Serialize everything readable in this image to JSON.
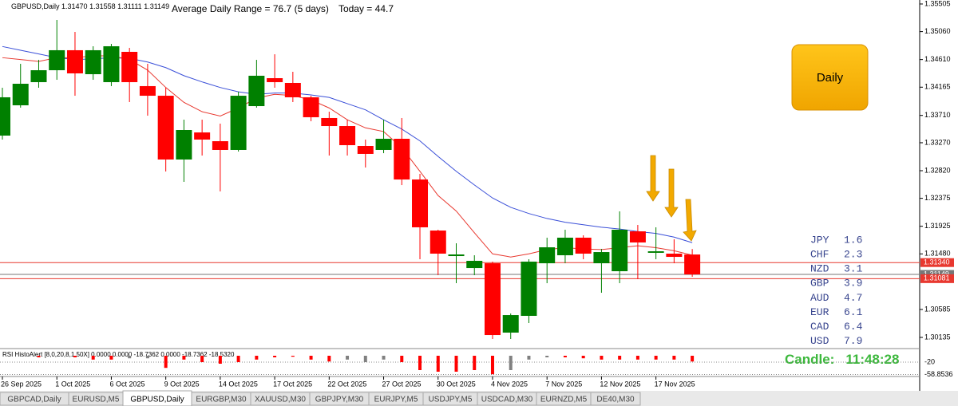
{
  "header": {
    "symbol": "GBPUSD,Daily",
    "ohlc": [
      "1.31470",
      "1.31558",
      "1.31111",
      "1.31149"
    ]
  },
  "adr": {
    "label": "Average Daily Range =",
    "value": 76.7,
    "period": "(5 days)",
    "today_label": "Today =",
    "today": 44.7
  },
  "button": "Daily",
  "candle_timer": {
    "label": "Candle:",
    "time": "11:48:28"
  },
  "strength": [
    {
      "currency": "JPY",
      "value": 1.6
    },
    {
      "currency": "CHF",
      "value": 2.3
    },
    {
      "currency": "NZD",
      "value": 3.1
    },
    {
      "currency": "GBP",
      "value": 3.9
    },
    {
      "currency": "AUD",
      "value": 4.7
    },
    {
      "currency": "EUR",
      "value": 6.1
    },
    {
      "currency": "CAD",
      "value": 6.4
    },
    {
      "currency": "USD",
      "value": 7.9
    }
  ],
  "tabs": [
    "GBPCAD,Daily",
    "EURUSD,M5",
    "GBPUSD,Daily",
    "EURGBP,M30",
    "XAUUSD,M30",
    "GBPJPY,M30",
    "EURJPY,M5",
    "USDJPY,M5",
    "USDCAD,M30",
    "EURNZD,M5",
    "DE40,M30"
  ],
  "active_tab": 2,
  "chart_data": {
    "type": "candlestick",
    "categories": [
      "26 Sep 2025",
      null,
      null,
      "1 Oct 2025",
      null,
      null,
      "6 Oct 2025",
      null,
      null,
      "9 Oct 2025",
      null,
      null,
      "14 Oct 2025",
      null,
      null,
      "17 Oct 2025",
      null,
      null,
      "22 Oct 2025",
      null,
      null,
      "27 Oct 2025",
      null,
      null,
      "30 Oct 2025",
      null,
      null,
      "4 Nov 2025",
      null,
      null,
      "7 Nov 2025",
      null,
      null,
      "12 Nov 2025",
      null,
      null,
      "17 Nov 2025",
      null,
      null
    ],
    "open": [
      1.33385,
      1.33873,
      1.34246,
      1.34438,
      1.3476,
      1.34374,
      1.34246,
      1.34734,
      1.34182,
      1.34027,
      1.33,
      1.33436,
      1.33295,
      1.33154,
      1.3386,
      1.3431,
      1.34233,
      1.34002,
      1.33668,
      1.33539,
      1.33218,
      1.33154,
      1.33334,
      1.32678,
      1.31856,
      1.31445,
      1.31252,
      1.31329,
      1.30212,
      1.30482,
      1.31329,
      1.31458,
      1.31741,
      1.31329,
      1.31201,
      1.31843,
      1.31497,
      1.31484,
      1.3147
    ],
    "high": [
      1.34156,
      1.34541,
      1.34605,
      1.35248,
      1.35055,
      1.34824,
      1.34862,
      1.34798,
      1.34541,
      1.34156,
      1.33642,
      1.33642,
      1.33578,
      1.34092,
      1.34605,
      1.34695,
      1.34413,
      1.34027,
      1.3377,
      1.33642,
      1.33321,
      1.33642,
      1.33668,
      1.32769,
      1.31869,
      1.31651,
      1.31458,
      1.31355,
      1.3052,
      1.31394,
      1.31741,
      1.31869,
      1.31779,
      1.31561,
      1.32165,
      1.31946,
      1.31908,
      1.31715,
      1.31558
    ],
    "low": [
      1.33321,
      1.33835,
      1.34156,
      1.34284,
      1.34027,
      1.34284,
      1.34182,
      1.33925,
      1.33706,
      1.32807,
      1.3264,
      1.33064,
      1.32486,
      1.33128,
      1.33835,
      1.34156,
      1.33925,
      1.33616,
      1.33064,
      1.33064,
      1.32871,
      1.33102,
      1.32588,
      1.31394,
      1.31137,
      1.31008,
      1.31137,
      1.30109,
      1.30109,
      1.30366,
      1.31008,
      1.31329,
      1.31394,
      1.30854,
      1.31008,
      1.31073,
      1.31394,
      1.31329,
      1.31111
    ],
    "close": [
      1.34002,
      1.3422,
      1.34438,
      1.3476,
      1.34387,
      1.3476,
      1.34824,
      1.34246,
      1.34027,
      1.33,
      1.33475,
      1.33321,
      1.33154,
      1.34027,
      1.34349,
      1.34246,
      1.34002,
      1.33681,
      1.33539,
      1.33231,
      1.3309,
      1.33334,
      1.32678,
      1.31908,
      1.31484,
      1.31471,
      1.31368,
      1.30173,
      1.30494,
      1.31355,
      1.31586,
      1.31741,
      1.31484,
      1.31509,
      1.31869,
      1.31664,
      1.31522,
      1.31432,
      1.31149
    ],
    "up_color": "#008000",
    "down_color": "#ff0000",
    "lines": [
      {
        "color": "#3a4fd8",
        "values": [
          1.3482,
          1.3476,
          1.347,
          1.3464,
          1.3461,
          1.3462,
          1.3464,
          1.3463,
          1.3457,
          1.3448,
          1.3435,
          1.3425,
          1.3416,
          1.3409,
          1.3405,
          1.3407,
          1.3407,
          1.3404,
          1.34,
          1.339,
          1.338,
          1.3364,
          1.3349,
          1.333,
          1.3305,
          1.3281,
          1.3259,
          1.3238,
          1.3223,
          1.3213,
          1.3205,
          1.3199,
          1.3195,
          1.3191,
          1.3188,
          1.3184,
          1.3181,
          1.3175,
          1.3166
        ]
      },
      {
        "color": "#e8382f",
        "values": [
          1.3464,
          1.3461,
          1.3458,
          1.3464,
          1.3464,
          1.3467,
          1.3467,
          1.3461,
          1.3444,
          1.3416,
          1.3392,
          1.3377,
          1.337,
          1.3383,
          1.3399,
          1.3405,
          1.3403,
          1.3396,
          1.3383,
          1.3364,
          1.3351,
          1.3345,
          1.3319,
          1.3281,
          1.3242,
          1.3217,
          1.3182,
          1.3148,
          1.3143,
          1.3148,
          1.3155,
          1.3158,
          1.3156,
          1.3155,
          1.3158,
          1.3161,
          1.3158,
          1.3153,
          1.3146
        ]
      }
    ],
    "levels": [
      {
        "value": 1.3134,
        "label": "1.31340",
        "color": "#e8382f"
      },
      {
        "value": 1.31149,
        "label": "1.31149",
        "color": "#777777"
      },
      {
        "value": 1.31081,
        "label": "1.31081",
        "color": "#e8382f"
      }
    ],
    "ylim": [
      1.29955,
      1.35569
    ],
    "yticks": [
      1.35505,
      {
        "value": 1.3506,
        "label": "1.35060"
      },
      {
        "value": 1.3461,
        "label": "1.34610"
      },
      1.34165,
      {
        "value": 1.3371,
        "label": "1.33710"
      },
      {
        "value": 1.3327,
        "label": "1.33270"
      },
      {
        "value": 1.3282,
        "label": "1.32820"
      },
      1.32375,
      1.31925,
      {
        "value": 1.3148,
        "label": "1.31480"
      },
      1.30585,
      1.30135
    ],
    "indicator": {
      "title": "RSI HistoAlert [8,0,20,8,1.50X] 0.0000 0.0000 -18.7362 0.0000 -18.7362 -18.5320",
      "ylim": [
        -60,
        5
      ],
      "yticks": [
        -20,
        -58.8536
      ],
      "values": [
        null,
        null,
        -5,
        null,
        -5,
        -12,
        -12,
        -8,
        -8,
        -38,
        -12,
        -20,
        -25,
        -20,
        -12,
        -5,
        -3,
        -12,
        -18,
        -12,
        -20,
        -12,
        -20,
        -45,
        -50,
        -50,
        -45,
        -58,
        -45,
        -12,
        -5,
        -5,
        -8,
        -12,
        -12,
        -12,
        -12,
        -12,
        -18
      ],
      "colors": [
        "#ff0000",
        "#ff0000",
        "#ff0000",
        "#ff0000",
        "#ff0000",
        "#ff0000",
        "#ff0000",
        "#808080",
        "#808080",
        "#ff0000",
        "#ff0000",
        "#ff0000",
        "#ff0000",
        "#ff0000",
        "#ff0000",
        "#ff0000",
        "#ff0000",
        "#ff0000",
        "#ff0000",
        "#808080",
        "#808080",
        "#808080",
        "#ff0000",
        "#ff0000",
        "#ff0000",
        "#ff0000",
        "#ff0000",
        "#ff0000",
        "#808080",
        "#808080",
        "#808080",
        "#ff0000",
        "#ff0000",
        "#ff0000",
        "#ff0000",
        "#ff0000",
        "#ff0000",
        "#ff0000",
        "#ff0000"
      ]
    }
  }
}
